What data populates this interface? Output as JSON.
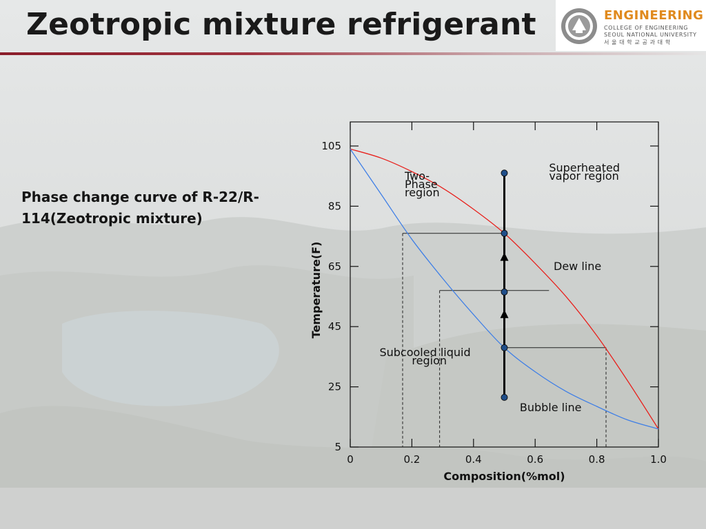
{
  "title": "Zeotropic mixture refrigerant",
  "logo": {
    "name": "ENGINEERING",
    "line1": "COLLEGE OF ENGINEERING",
    "line2": "SEOUL NATIONAL UNIVERSITY",
    "line3": "서 울 대 학 교 공 과 대 학"
  },
  "subtitle": "Phase change curve of R-22/R-114(Zeotropic mixture)",
  "colors": {
    "dew": "#e8201c",
    "bubble": "#3f7fe6",
    "accent": "#8a1d2a",
    "point": "#1f4e8a"
  },
  "chart_data": {
    "type": "line",
    "xlabel": "Composition(%mol)",
    "ylabel": "Temperature(F)",
    "xticks": [
      "0",
      "0.2",
      "0.4",
      "0.6",
      "0.8",
      "1.0"
    ],
    "yticks": [
      "105",
      "85",
      "65",
      "45",
      "25",
      "5"
    ],
    "xlim": [
      0,
      1.0
    ],
    "ylim": [
      5,
      113
    ],
    "series": [
      {
        "name": "Dew line",
        "x": [
          0,
          0.1,
          0.2,
          0.3,
          0.4,
          0.5,
          0.6,
          0.7,
          0.8,
          0.9,
          1.0
        ],
        "y": [
          104,
          101,
          96.5,
          91,
          84,
          76,
          66,
          55,
          42,
          27,
          11
        ]
      },
      {
        "name": "Bubble line",
        "x": [
          0,
          0.1,
          0.2,
          0.3,
          0.4,
          0.5,
          0.6,
          0.7,
          0.8,
          0.9,
          1.0
        ],
        "y": [
          104,
          89,
          74,
          61,
          49,
          38,
          30,
          23.5,
          18.5,
          14,
          11
        ]
      }
    ],
    "vertical_process": {
      "x": 0.5,
      "points_y": [
        96,
        76,
        56.5,
        38,
        21.5
      ],
      "arrows_y": [
        68,
        49
      ]
    },
    "tie_lines": [
      {
        "y": 76,
        "x_liquid": 0.17,
        "x_vapor": 0.5
      },
      {
        "y": 57,
        "x_liquid": 0.29,
        "x_vapor": 0.645
      },
      {
        "y": 38,
        "x_liquid": 0.5,
        "x_vapor": 0.83
      }
    ],
    "annotations": {
      "two_phase": [
        "Two-",
        "Phase",
        "region"
      ],
      "superheated": [
        "Superheated",
        "vapor region"
      ],
      "subcooled": [
        "Subcooled liquid",
        "region"
      ],
      "dew_line": "Dew line",
      "bubble_line": "Bubble line"
    }
  }
}
